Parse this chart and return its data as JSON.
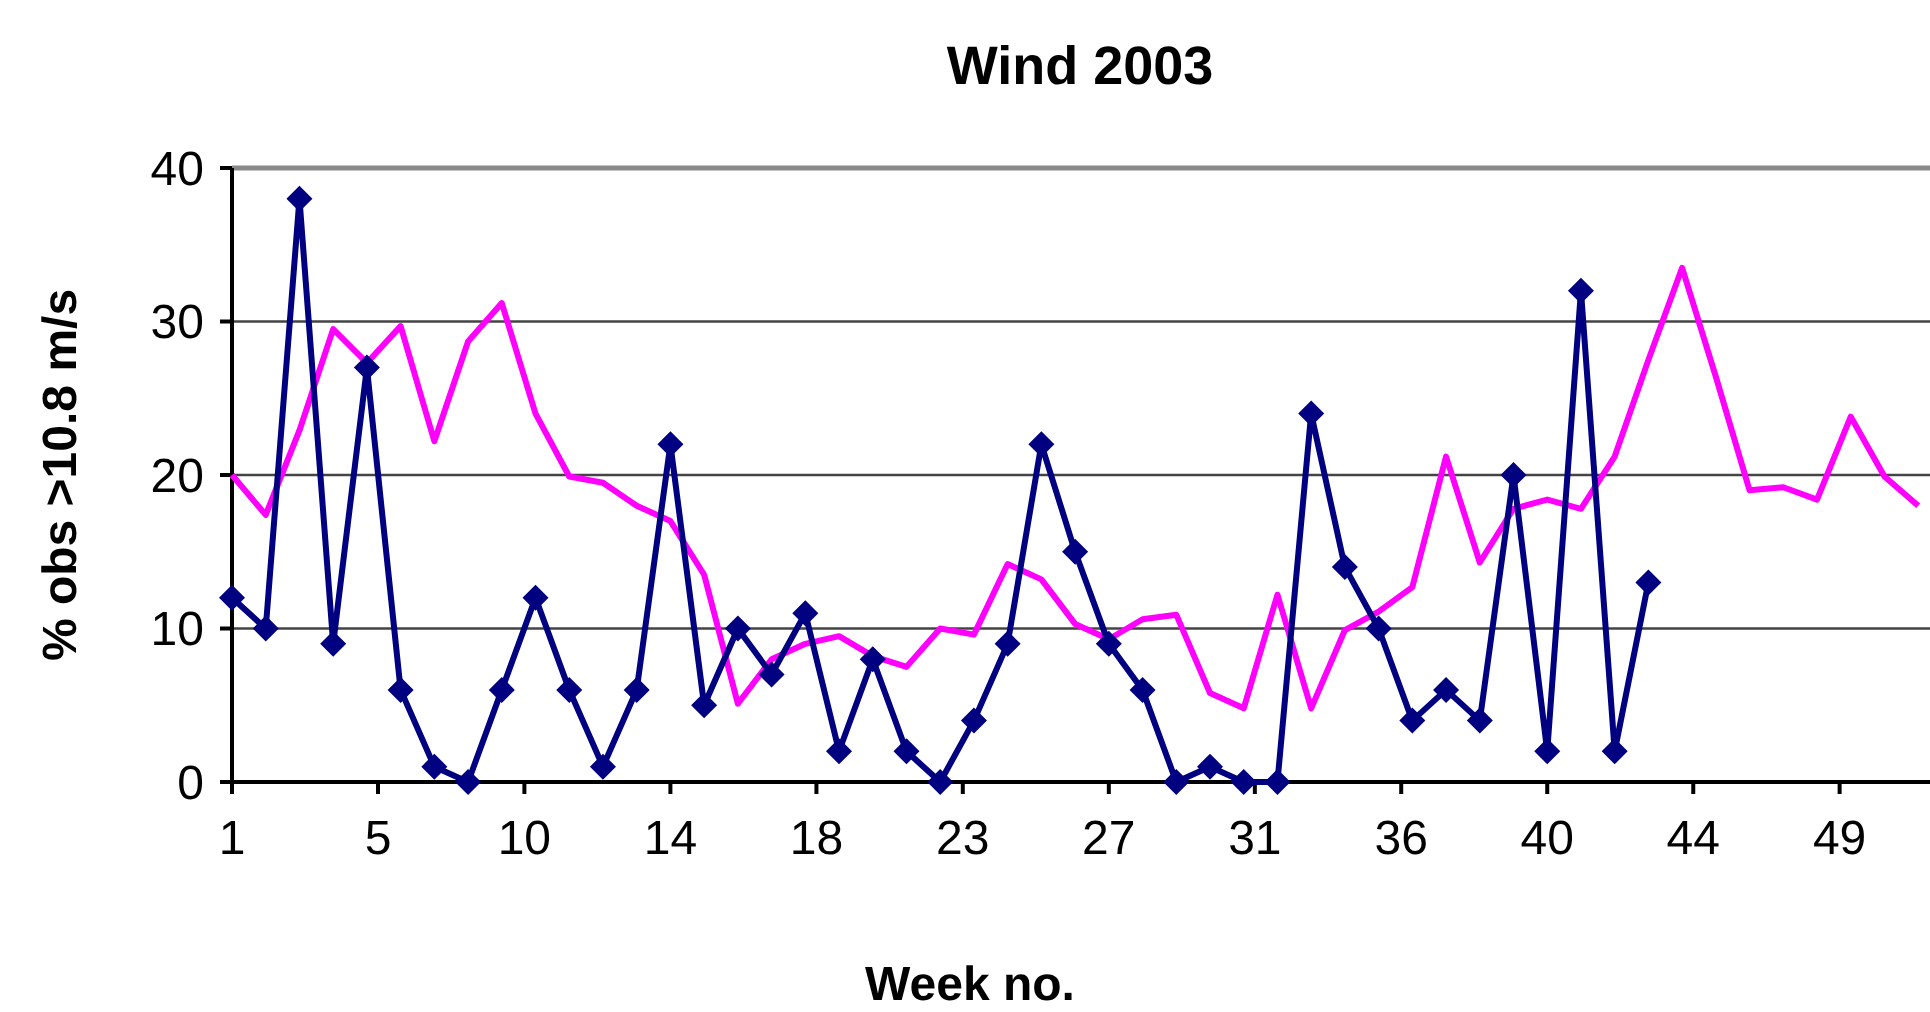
{
  "chart_data": {
    "type": "line",
    "title": "Wind 2003",
    "xlabel": "Week no.",
    "ylabel": "% obs >10.8 m/s",
    "x": [
      1,
      2,
      3,
      4,
      5,
      6,
      7,
      8,
      9,
      10,
      11,
      12,
      13,
      14,
      15,
      16,
      17,
      18,
      19,
      20,
      21,
      22,
      23,
      24,
      25,
      26,
      27,
      28,
      29,
      30,
      31,
      32,
      33,
      34,
      35,
      36,
      37,
      38,
      39,
      40,
      41,
      42,
      43,
      44,
      45,
      46,
      47,
      48,
      49,
      50,
      51
    ],
    "xlim": [
      1,
      51.35
    ],
    "xticks": [
      {
        "value": 1,
        "label": "1"
      },
      {
        "value": 5.33,
        "label": "5"
      },
      {
        "value": 9.67,
        "label": "10"
      },
      {
        "value": 14,
        "label": "14"
      },
      {
        "value": 18.33,
        "label": "18"
      },
      {
        "value": 22.67,
        "label": "23"
      },
      {
        "value": 27,
        "label": "27"
      },
      {
        "value": 31.33,
        "label": "31"
      },
      {
        "value": 35.67,
        "label": "36"
      },
      {
        "value": 40,
        "label": "40"
      },
      {
        "value": 44.33,
        "label": "44"
      },
      {
        "value": 48.67,
        "label": "49"
      }
    ],
    "ylim": [
      0,
      40
    ],
    "yticks": [
      0,
      10,
      20,
      30,
      40
    ],
    "grid": "y",
    "line_style": "solid",
    "series": [
      {
        "color": "#ff00ff",
        "marker": "none",
        "values": [
          20,
          17.4,
          22.9,
          29.5,
          27.3,
          29.7,
          22.2,
          28.7,
          31.2,
          24,
          19.9,
          19.5,
          18,
          17,
          13.5,
          5.1,
          8,
          9,
          9.5,
          8.2,
          7.5,
          10,
          9.6,
          14.2,
          13.2,
          10.3,
          9.3,
          10.6,
          10.9,
          5.8,
          4.8,
          12.2,
          4.8,
          9.9,
          11.1,
          12.7,
          21.2,
          14.3,
          17.8,
          18.4,
          17.8,
          21.2,
          27.5,
          33.5,
          26.4,
          19,
          19.2,
          18.4,
          23.8,
          19.9,
          18
        ]
      },
      {
        "color": "#000080",
        "marker": "diamond",
        "values": [
          12,
          10,
          38,
          9,
          27,
          6,
          1,
          0,
          6,
          12,
          6,
          1,
          6,
          22,
          5,
          10,
          7,
          11,
          2,
          8,
          2,
          0,
          4,
          9,
          22,
          15,
          9,
          6,
          0,
          1,
          0,
          0,
          24,
          14,
          10,
          4,
          6,
          4,
          20,
          2,
          32,
          2,
          13,
          null,
          null,
          null,
          null,
          null,
          null,
          null,
          null
        ]
      }
    ]
  }
}
